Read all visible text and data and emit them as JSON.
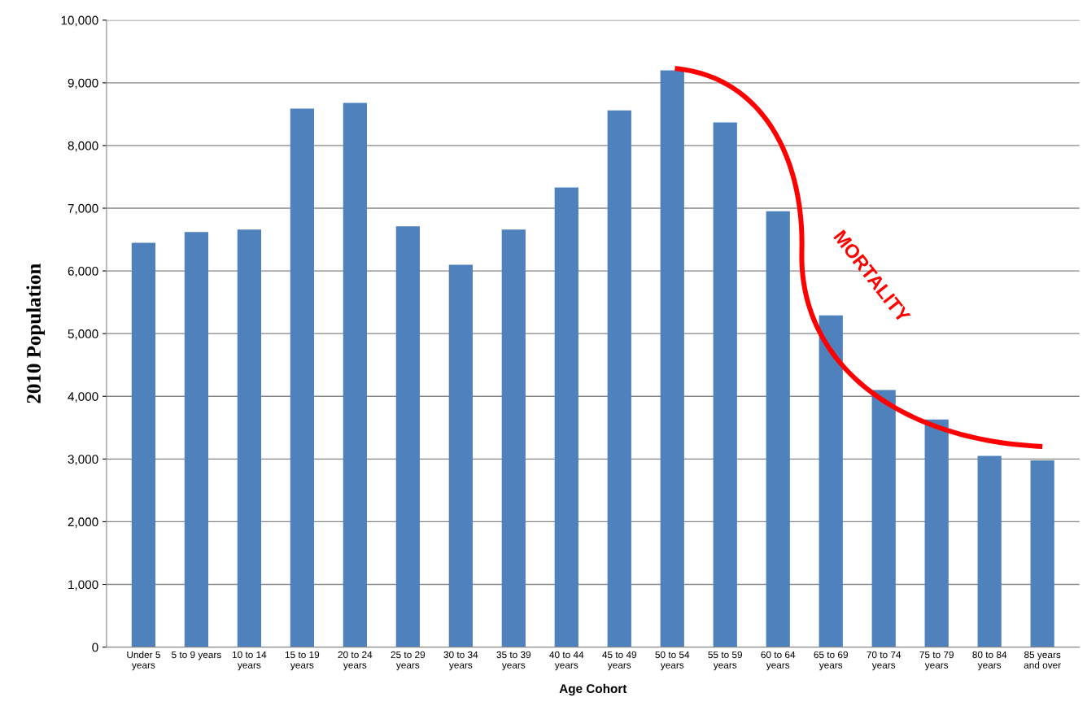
{
  "chart_data": {
    "type": "bar",
    "xlabel": "Age Cohort",
    "ylabel": "2010 Population",
    "categories": [
      "Under 5 years",
      "5 to 9 years",
      "10 to 14 years",
      "15 to 19 years",
      "20 to 24 years",
      "25 to 29 years",
      "30 to 34 years",
      "35 to 39 years",
      "40 to 44 years",
      "45 to 49 years",
      "50 to 54 years",
      "55 to 59 years",
      "60 to 64 years",
      "65 to 69 years",
      "70 to 74 years",
      "75 to 79 years",
      "80 to 84 years",
      "85 years and over"
    ],
    "values": [
      6450,
      6620,
      6660,
      8590,
      8680,
      6710,
      6100,
      6660,
      7330,
      8560,
      9200,
      8370,
      6950,
      5290,
      4100,
      3630,
      3050,
      2980
    ],
    "color": "#4f81bd",
    "ylim": [
      0,
      10000
    ],
    "yticks": [
      {
        "value": 0,
        "label": "0"
      },
      {
        "value": 1000,
        "label": "1,000"
      },
      {
        "value": 2000,
        "label": "2,000"
      },
      {
        "value": 3000,
        "label": "3,000"
      },
      {
        "value": 4000,
        "label": "4,000"
      },
      {
        "value": 5000,
        "label": "5,000"
      },
      {
        "value": 6000,
        "label": "6,000"
      },
      {
        "value": 7000,
        "label": "7,000"
      },
      {
        "value": 8000,
        "label": "8,000"
      },
      {
        "value": 9000,
        "label": "9,000"
      },
      {
        "value": 10000,
        "label": "10,000"
      }
    ],
    "grid": "y",
    "annotations": [
      "MORTALITY"
    ]
  }
}
